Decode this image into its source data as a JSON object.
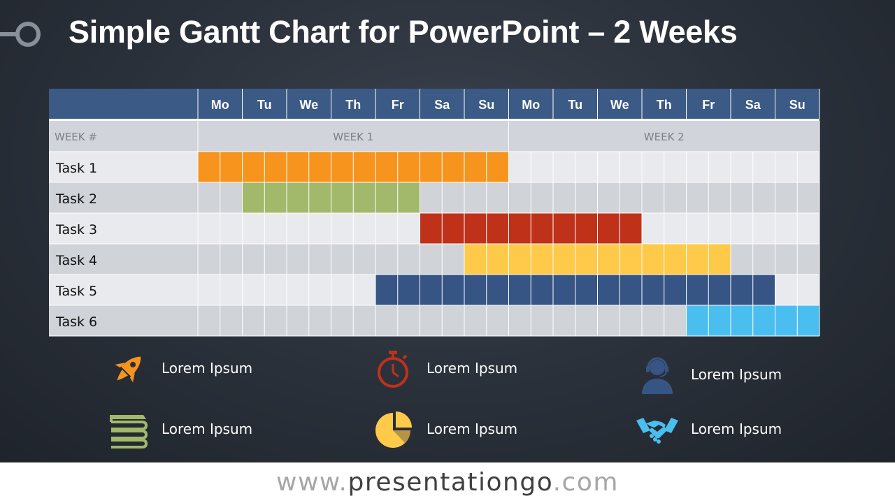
{
  "slide": {
    "title": "Simple Gantt Chart for PowerPoint – 2 Weeks"
  },
  "gantt": {
    "days": [
      "Mo",
      "Tu",
      "We",
      "Th",
      "Fr",
      "Sa",
      "Su",
      "Mo",
      "Tu",
      "We",
      "Th",
      "Fr",
      "Sa",
      "Su"
    ],
    "week_label_header": "WEEK #",
    "weeks": [
      {
        "label": "WEEK 1",
        "start_day": 0,
        "span_days": 7
      },
      {
        "label": "WEEK 2",
        "start_day": 7,
        "span_days": 7
      }
    ],
    "tasks": [
      {
        "name": "Task 1",
        "start": 0,
        "end": 7,
        "color": "#F7941E"
      },
      {
        "name": "Task 2",
        "start": 1,
        "end": 5,
        "color": "#A2B96B"
      },
      {
        "name": "Task 3",
        "start": 5,
        "end": 10,
        "color": "#C0311A"
      },
      {
        "name": "Task 4",
        "start": 6,
        "end": 12,
        "color": "#FFC94A"
      },
      {
        "name": "Task 5",
        "start": 4,
        "end": 13,
        "color": "#365585"
      },
      {
        "name": "Task 6",
        "start": 11,
        "end": 14,
        "color": "#4BBEF0"
      }
    ],
    "colors": {
      "header_bg": "#3B5A85",
      "week_row_bg": "#D1D4DA",
      "row_light": "#E9EAED",
      "row_dark": "#D0D3D8"
    }
  },
  "legend": [
    {
      "icon": "rocket-icon",
      "label": "Lorem Ipsum",
      "color": "#F7941E"
    },
    {
      "icon": "stopwatch-icon",
      "label": "Lorem Ipsum",
      "color": "#C0311A"
    },
    {
      "icon": "support-agent-icon",
      "label": "Lorem Ipsum",
      "color": "#365585"
    },
    {
      "icon": "books-icon",
      "label": "Lorem Ipsum",
      "color": "#A2B96B"
    },
    {
      "icon": "pie-chart-icon",
      "label": "Lorem Ipsum",
      "color": "#FFC94A"
    },
    {
      "icon": "handshake-icon",
      "label": "Lorem Ipsum",
      "color": "#4BBEF0"
    }
  ],
  "footer": {
    "prefix": "www.",
    "brand": "presentationgo",
    "suffix": ".com"
  }
}
